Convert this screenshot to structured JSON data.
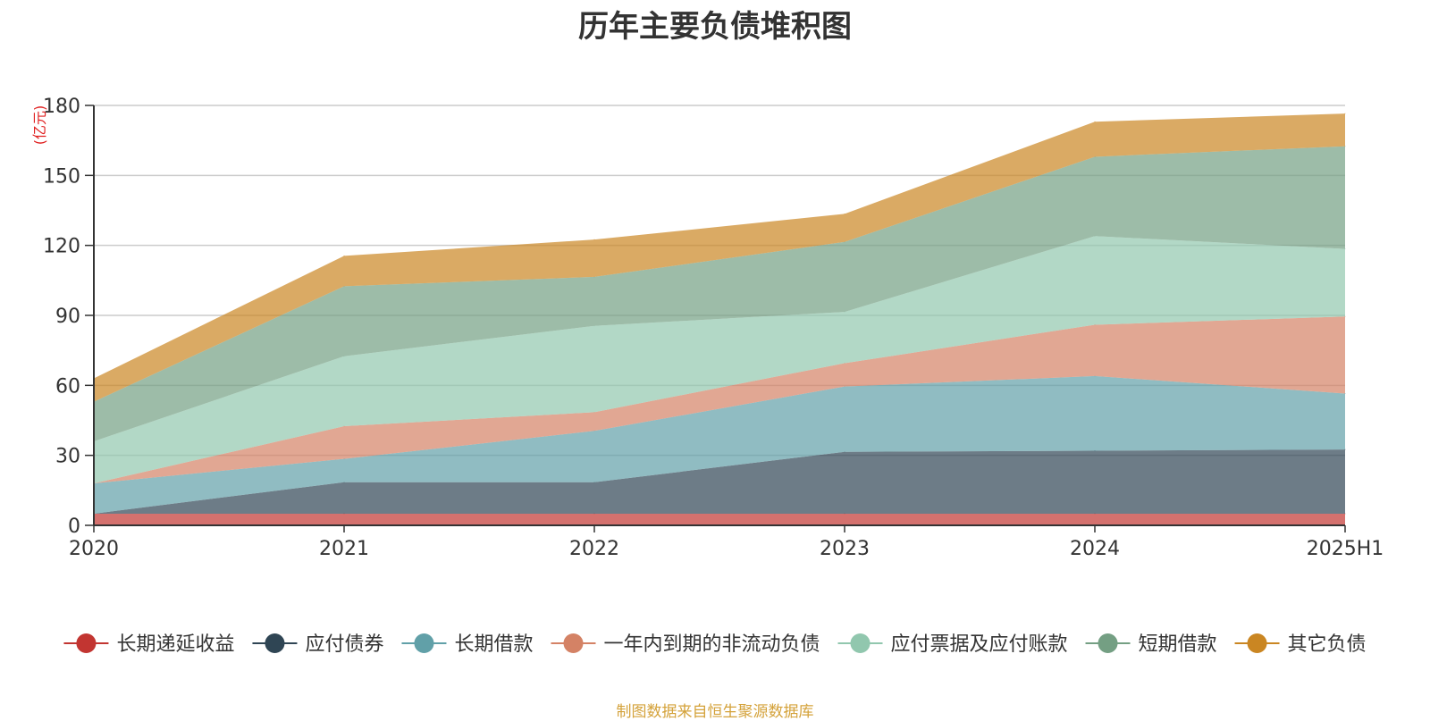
{
  "chart_data": {
    "type": "area",
    "title": "历年主要负债堆积图",
    "ylabel": "(亿元)",
    "xlabel": "",
    "categories": [
      "2020",
      "2021",
      "2022",
      "2023",
      "2024",
      "2025H1"
    ],
    "ylim": [
      0,
      180
    ],
    "yticks": [
      0,
      30,
      60,
      90,
      120,
      150,
      180
    ],
    "stacked": true,
    "grid": true,
    "legend_position": "bottom",
    "series": [
      {
        "name": "长期递延收益",
        "color": "#c23531",
        "values": [
          5,
          5,
          5,
          5,
          5,
          5
        ]
      },
      {
        "name": "应付债券",
        "color": "#2f4554",
        "values": [
          0,
          13.5,
          13.5,
          26.5,
          27,
          27.5
        ]
      },
      {
        "name": "长期借款",
        "color": "#61a0a8",
        "values": [
          13,
          10,
          22,
          28,
          32,
          24
        ]
      },
      {
        "name": "一年内到期的非流动负债",
        "color": "#d48265",
        "values": [
          0,
          14,
          8,
          10,
          22,
          33
        ]
      },
      {
        "name": "应付票据及应付账款",
        "color": "#91c7ae",
        "values": [
          18,
          30,
          37,
          22,
          38,
          29
        ]
      },
      {
        "name": "短期借款",
        "color": "#749f83",
        "values": [
          17,
          30,
          21,
          30,
          34,
          44
        ]
      },
      {
        "name": "其它负债",
        "color": "#ca8622",
        "values": [
          10,
          13,
          16,
          12,
          15,
          14
        ]
      }
    ]
  },
  "source_note": "制图数据来自恒生聚源数据库"
}
